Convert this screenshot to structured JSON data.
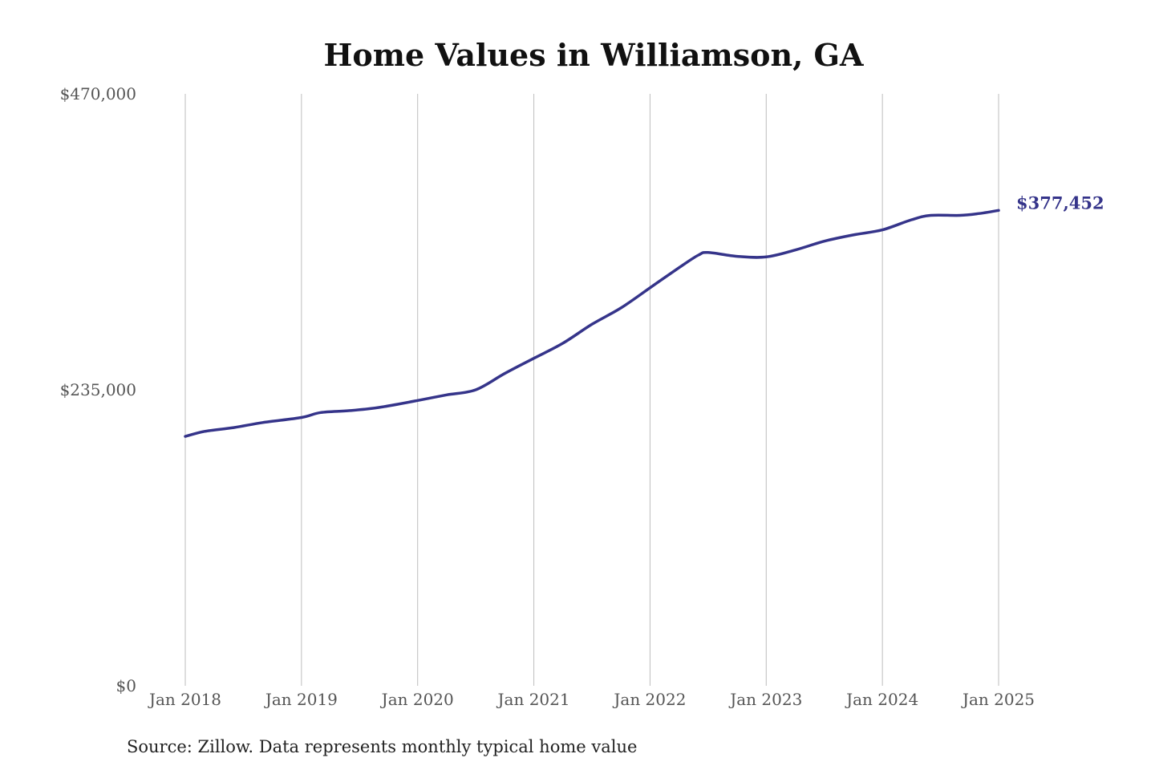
{
  "chart_data": {
    "type": "line",
    "title": "Home Values in Williamson, GA",
    "xlabel": "",
    "ylabel": "",
    "y_ticks": [
      {
        "value": 0,
        "label": "$0"
      },
      {
        "value": 235000,
        "label": "$235,000"
      },
      {
        "value": 470000,
        "label": "$470,000"
      }
    ],
    "ylim": [
      0,
      470000
    ],
    "x_ticks": [
      {
        "value": "2018-01",
        "label": "Jan 2018"
      },
      {
        "value": "2019-01",
        "label": "Jan 2019"
      },
      {
        "value": "2020-01",
        "label": "Jan 2020"
      },
      {
        "value": "2021-01",
        "label": "Jan 2021"
      },
      {
        "value": "2022-01",
        "label": "Jan 2022"
      },
      {
        "value": "2023-01",
        "label": "Jan 2023"
      },
      {
        "value": "2024-01",
        "label": "Jan 2024"
      },
      {
        "value": "2025-01",
        "label": "Jan 2025"
      }
    ],
    "xlim": [
      "2018-01",
      "2025-01"
    ],
    "grid": {
      "vertical": true,
      "horizontal": false
    },
    "series": [
      {
        "color": "#35348a",
        "points": [
          {
            "x": "2018-01",
            "y": 198000
          },
          {
            "x": "2018-03",
            "y": 202000
          },
          {
            "x": "2018-06",
            "y": 205000
          },
          {
            "x": "2018-09",
            "y": 209000
          },
          {
            "x": "2019-01",
            "y": 213000
          },
          {
            "x": "2019-03",
            "y": 217000
          },
          {
            "x": "2019-06",
            "y": 218500
          },
          {
            "x": "2019-09",
            "y": 221000
          },
          {
            "x": "2020-01",
            "y": 226500
          },
          {
            "x": "2020-04",
            "y": 231000
          },
          {
            "x": "2020-07",
            "y": 235000
          },
          {
            "x": "2020-10",
            "y": 248000
          },
          {
            "x": "2021-01",
            "y": 260000
          },
          {
            "x": "2021-04",
            "y": 272000
          },
          {
            "x": "2021-07",
            "y": 287000
          },
          {
            "x": "2021-10",
            "y": 300000
          },
          {
            "x": "2022-01",
            "y": 316000
          },
          {
            "x": "2022-04",
            "y": 332000
          },
          {
            "x": "2022-06",
            "y": 342000
          },
          {
            "x": "2022-07",
            "y": 344000
          },
          {
            "x": "2022-10",
            "y": 341000
          },
          {
            "x": "2023-01",
            "y": 340500
          },
          {
            "x": "2023-04",
            "y": 346000
          },
          {
            "x": "2023-07",
            "y": 353000
          },
          {
            "x": "2023-10",
            "y": 358000
          },
          {
            "x": "2024-01",
            "y": 362000
          },
          {
            "x": "2024-04",
            "y": 370000
          },
          {
            "x": "2024-06",
            "y": 373500
          },
          {
            "x": "2024-09",
            "y": 373500
          },
          {
            "x": "2024-11",
            "y": 375000
          },
          {
            "x": "2025-01",
            "y": 377452
          }
        ],
        "end_label": "$377,452"
      }
    ],
    "source": "Source: Zillow. Data represents monthly typical home value"
  }
}
